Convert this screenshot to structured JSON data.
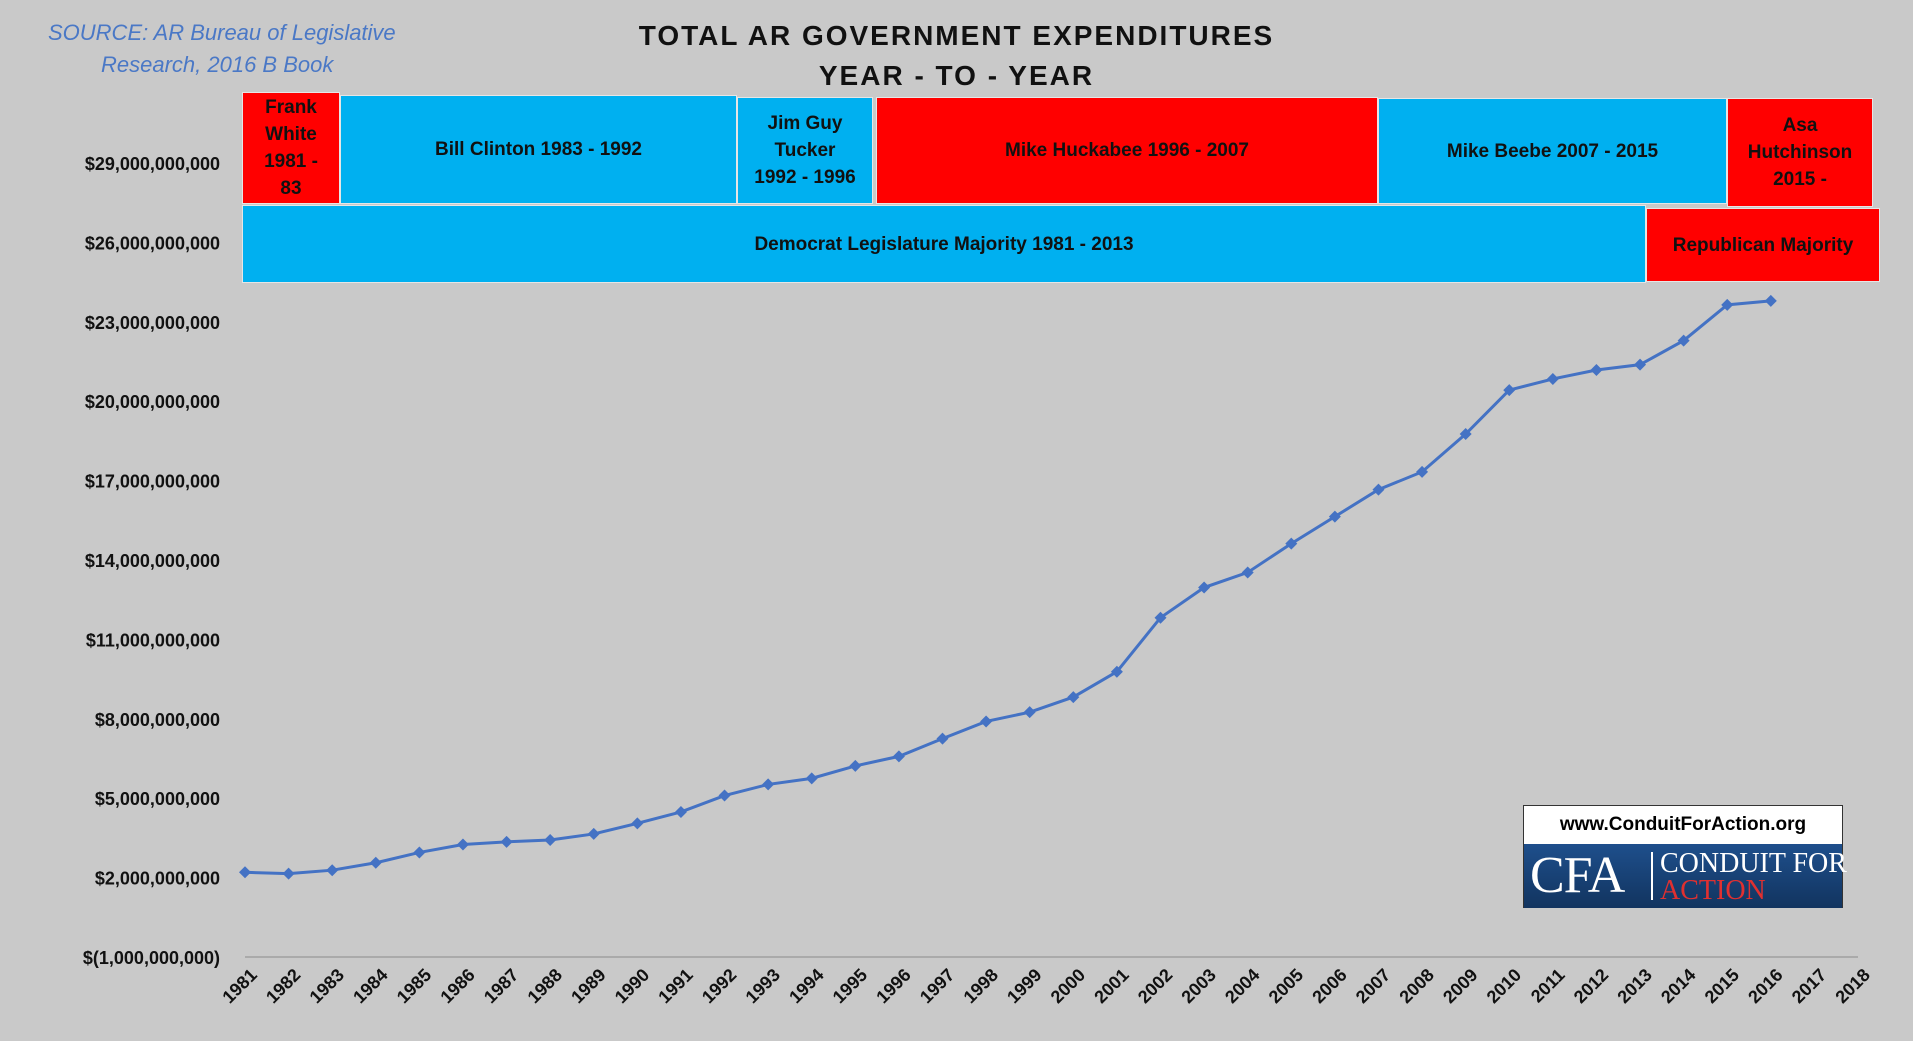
{
  "source": {
    "line1": "SOURCE: AR Bureau of Legislative",
    "line2": "Research,  2016 B Book"
  },
  "title": {
    "line1": "TOTAL AR GOVERNMENT EXPENDITURES",
    "line2": "YEAR - TO - YEAR"
  },
  "governors": [
    {
      "label": "Frank\nWhite\n1981 -\n83",
      "party_color": "#ff0000"
    },
    {
      "label": "Bill Clinton 1983 - 1992",
      "party_color": "#00b0f0"
    },
    {
      "label": "Jim Guy\nTucker\n1992 - 1996",
      "party_color": "#00b0f0"
    },
    {
      "label": "Mike Huckabee 1996 - 2007",
      "party_color": "#ff0000"
    },
    {
      "label": "Mike Beebe 2007 - 2015",
      "party_color": "#00b0f0"
    },
    {
      "label": "Asa\nHutchinson\n2015 -",
      "party_color": "#ff0000"
    }
  ],
  "legislature": [
    {
      "label": "Democrat Legislature Majority 1981 - 2013",
      "party_color": "#00b0f0"
    },
    {
      "label": "Republican Majority",
      "party_color": "#ff0000"
    }
  ],
  "logo": {
    "url": "www.ConduitForAction.org",
    "abbr": "CFA",
    "name_top": "CONDUIT FOR",
    "name_bottom": "ACTION"
  },
  "chart_data": {
    "type": "line",
    "title": "TOTAL AR GOVERNMENT EXPENDITURES YEAR - TO - YEAR",
    "xlabel": "",
    "ylabel": "",
    "series_color": "#4472c4",
    "categories": [
      "1981",
      "1982",
      "1983",
      "1984",
      "1985",
      "1986",
      "1987",
      "1988",
      "1989",
      "1990",
      "1991",
      "1992",
      "1993",
      "1994",
      "1995",
      "1996",
      "1997",
      "1998",
      "1999",
      "2000",
      "2001",
      "2002",
      "2003",
      "2004",
      "2005",
      "2006",
      "2007",
      "2008",
      "2009",
      "2010",
      "2011",
      "2012",
      "2013",
      "2014",
      "2015",
      "2016",
      "2017",
      "2018"
    ],
    "series": [
      {
        "values": [
          2200000000,
          2150000000,
          2280000000,
          2560000000,
          2950000000,
          3250000000,
          3350000000,
          3420000000,
          3650000000,
          4050000000,
          4480000000,
          5100000000,
          5520000000,
          5750000000,
          6220000000,
          6580000000,
          7250000000,
          7900000000,
          8250000000,
          8820000000,
          9780000000,
          11820000000,
          12960000000,
          13530000000,
          14620000000,
          15640000000,
          16660000000,
          17330000000,
          18760000000,
          20420000000,
          20840000000,
          21180000000,
          21380000000,
          22290000000,
          23640000000,
          23790000000,
          null,
          null
        ]
      }
    ],
    "y_ticks": [
      "$(1,000,000,000)",
      "$2,000,000,000",
      "$5,000,000,000",
      "$8,000,000,000",
      "$11,000,000,000",
      "$14,000,000,000",
      "$17,000,000,000",
      "$20,000,000,000",
      "$23,000,000,000",
      "$26,000,000,000",
      "$29,000,000,000"
    ],
    "y_tick_values": [
      -1000000000,
      2000000000,
      5000000000,
      8000000000,
      11000000000,
      14000000000,
      17000000000,
      20000000000,
      23000000000,
      26000000000,
      29000000000
    ],
    "ylim": [
      -1000000000,
      32000000000
    ],
    "grid": false,
    "legend": "none"
  }
}
